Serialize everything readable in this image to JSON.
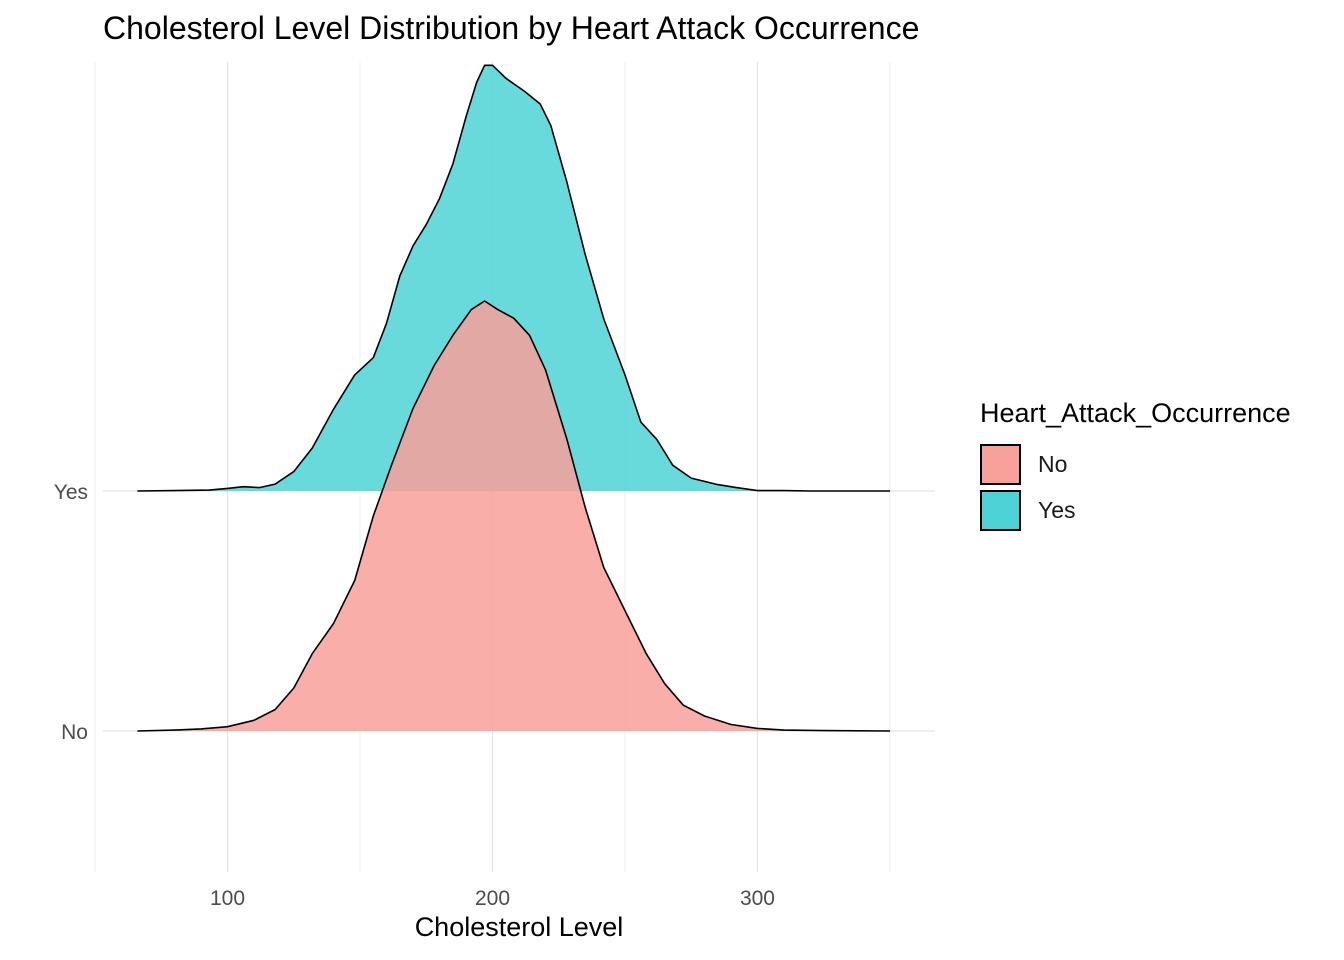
{
  "chart_data": {
    "type": "area",
    "title": "Cholesterol Level Distribution by Heart Attack Occurrence",
    "xlabel": "Cholesterol Level",
    "ylabel": "",
    "x_ticks": [
      100,
      200,
      300
    ],
    "xlim": [
      53,
      367
    ],
    "categories": [
      "No",
      "Yes"
    ],
    "grid": true,
    "legend": {
      "title": "Heart_Attack_Occurrence",
      "position": "right"
    },
    "series": [
      {
        "name": "No",
        "color": "#F8766D",
        "fill": "#F8A09A",
        "density": [
          [
            66,
            0
          ],
          [
            80,
            0.002
          ],
          [
            90,
            0.005
          ],
          [
            100,
            0.01
          ],
          [
            110,
            0.025
          ],
          [
            118,
            0.05
          ],
          [
            125,
            0.1
          ],
          [
            132,
            0.18
          ],
          [
            140,
            0.25
          ],
          [
            148,
            0.35
          ],
          [
            155,
            0.5
          ],
          [
            162,
            0.62
          ],
          [
            170,
            0.75
          ],
          [
            178,
            0.85
          ],
          [
            185,
            0.92
          ],
          [
            192,
            0.98
          ],
          [
            197,
            1.0
          ],
          [
            202,
            0.98
          ],
          [
            208,
            0.96
          ],
          [
            214,
            0.92
          ],
          [
            220,
            0.84
          ],
          [
            228,
            0.68
          ],
          [
            235,
            0.52
          ],
          [
            242,
            0.38
          ],
          [
            250,
            0.28
          ],
          [
            258,
            0.18
          ],
          [
            265,
            0.11
          ],
          [
            272,
            0.06
          ],
          [
            280,
            0.035
          ],
          [
            290,
            0.015
          ],
          [
            300,
            0.006
          ],
          [
            310,
            0.002
          ],
          [
            325,
            0.001
          ],
          [
            350,
            0
          ]
        ]
      },
      {
        "name": "Yes",
        "color": "#00BFC4",
        "fill": "#4DD3D6",
        "density": [
          [
            66,
            0
          ],
          [
            80,
            0.001
          ],
          [
            93,
            0.002
          ],
          [
            100,
            0.006
          ],
          [
            106,
            0.01
          ],
          [
            112,
            0.008
          ],
          [
            118,
            0.016
          ],
          [
            125,
            0.045
          ],
          [
            132,
            0.1
          ],
          [
            140,
            0.19
          ],
          [
            148,
            0.27
          ],
          [
            155,
            0.31
          ],
          [
            160,
            0.39
          ],
          [
            165,
            0.5
          ],
          [
            170,
            0.57
          ],
          [
            175,
            0.62
          ],
          [
            180,
            0.68
          ],
          [
            185,
            0.76
          ],
          [
            190,
            0.87
          ],
          [
            194,
            0.95
          ],
          [
            197,
            0.99
          ],
          [
            200,
            0.99
          ],
          [
            205,
            0.96
          ],
          [
            212,
            0.93
          ],
          [
            218,
            0.9
          ],
          [
            222,
            0.85
          ],
          [
            228,
            0.72
          ],
          [
            235,
            0.55
          ],
          [
            242,
            0.4
          ],
          [
            250,
            0.27
          ],
          [
            256,
            0.16
          ],
          [
            262,
            0.12
          ],
          [
            268,
            0.06
          ],
          [
            275,
            0.03
          ],
          [
            285,
            0.015
          ],
          [
            292,
            0.008
          ],
          [
            300,
            0.001
          ],
          [
            310,
            0.001
          ],
          [
            320,
            0
          ],
          [
            350,
            0
          ]
        ]
      }
    ]
  }
}
